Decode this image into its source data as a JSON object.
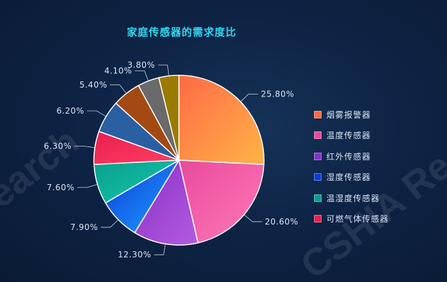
{
  "watermark": [
    "CSHIA Re",
    "earch"
  ],
  "chart_data": {
    "type": "pie",
    "title": "家庭传感器的需求度比",
    "slices": [
      {
        "label": "烟雾报警器",
        "value": 25.8,
        "display": "25.80%",
        "color": "#ff6a45",
        "color2": "#ffb347"
      },
      {
        "label": "温度传感器",
        "value": 20.6,
        "display": "20.60%",
        "color": "#e84a9c",
        "color2": "#ff7ab8"
      },
      {
        "label": "红外传感器",
        "value": 12.3,
        "display": "12.30%",
        "color": "#8c2fc8",
        "color2": "#b25ce0"
      },
      {
        "label": "湿度传感器",
        "value": 7.9,
        "display": "7.90%",
        "color": "#0d3cd8",
        "color2": "#1ea0ff"
      },
      {
        "label": "温湿度传感器",
        "value": 7.6,
        "display": "7.60%",
        "color": "#0a9e8c",
        "color2": "#12c9ad"
      },
      {
        "label": "可燃气体传感器",
        "value": 6.3,
        "display": "6.30%",
        "color": "#e81f4e",
        "color2": "#ff3f62"
      },
      {
        "label": "",
        "value": 6.2,
        "display": "6.20%",
        "color": "#2a5fa2",
        "color2": "#2a5fa2"
      },
      {
        "label": "",
        "value": 5.4,
        "display": "5.40%",
        "color": "#a34a12",
        "color2": "#a34a12"
      },
      {
        "label": "",
        "value": 4.1,
        "display": "4.10%",
        "color": "#6a6a6a",
        "color2": "#6a6a6a"
      },
      {
        "label": "",
        "value": 3.8,
        "display": "3.80%",
        "color": "#9a7a00",
        "color2": "#9a7a00"
      }
    ],
    "legend_position": "right"
  }
}
